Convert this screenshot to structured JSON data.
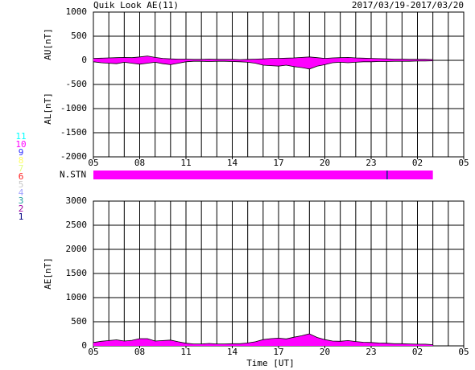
{
  "chart_data": [
    {
      "type": "area",
      "title": "Quik Look AE(11)",
      "subtitle": "2017/03/19-2017/03/20",
      "x": [
        0,
        0.5,
        1,
        1.5,
        2,
        2.5,
        3,
        3.5,
        4,
        4.5,
        5,
        5.5,
        6,
        6.5,
        7,
        7.5,
        8,
        8.5,
        9,
        9.5,
        10,
        10.5,
        11,
        11.5,
        12,
        12.5,
        13,
        13.5,
        14,
        14.5,
        15,
        15.5,
        16,
        16.5,
        17,
        17.5,
        18,
        18.5,
        19,
        19.5,
        20,
        20.5,
        21,
        21.5,
        22
      ],
      "series": [
        {
          "name": "AU[nT]",
          "color": "#ff00ff",
          "values": [
            40,
            45,
            50,
            55,
            60,
            55,
            70,
            90,
            60,
            40,
            30,
            25,
            25,
            20,
            20,
            25,
            20,
            20,
            20,
            15,
            20,
            25,
            30,
            40,
            40,
            45,
            50,
            60,
            70,
            55,
            40,
            50,
            55,
            60,
            50,
            45,
            40,
            35,
            30,
            25,
            25,
            20,
            20,
            20,
            15
          ]
        },
        {
          "name": "AL[nT]",
          "color": "#ff00ff",
          "values": [
            -30,
            -50,
            -60,
            -70,
            -40,
            -60,
            -80,
            -60,
            -40,
            -70,
            -90,
            -60,
            -30,
            -20,
            -20,
            -25,
            -20,
            -20,
            -25,
            -30,
            -40,
            -60,
            -100,
            -110,
            -120,
            -100,
            -130,
            -150,
            -180,
            -120,
            -90,
            -50,
            -40,
            -50,
            -40,
            -30,
            -30,
            -25,
            -25,
            -20,
            -20,
            -20,
            -15,
            -15,
            -10
          ]
        }
      ],
      "xlim": [
        0,
        24
      ],
      "xticks": [
        {
          "value": 0,
          "label": "05"
        },
        {
          "value": 3,
          "label": "08"
        },
        {
          "value": 6,
          "label": "11"
        },
        {
          "value": 9,
          "label": "14"
        },
        {
          "value": 12,
          "label": "17"
        },
        {
          "value": 15,
          "label": "20"
        },
        {
          "value": 18,
          "label": "23"
        },
        {
          "value": 21,
          "label": "02"
        },
        {
          "value": 24,
          "label": "05"
        }
      ],
      "ylim": [
        -2000,
        1000
      ],
      "yticks": [
        1000,
        500,
        0,
        -500,
        -1000,
        -1500,
        -2000
      ],
      "grid": true
    },
    {
      "type": "stations",
      "label": "N.STN",
      "levels": [
        11,
        10,
        9,
        8,
        7,
        6,
        5,
        4,
        3,
        2,
        1
      ],
      "colors": [
        "#00ffff",
        "#ff00ff",
        "#3030ff",
        "#ffff60",
        "#e0ff80",
        "#ff2020",
        "#c8c8c8",
        "#a0a0ff",
        "#20a0a0",
        "#a000a0",
        "#000080"
      ],
      "x_start": [
        0,
        19,
        19.08
      ],
      "x_end": [
        19,
        19.08,
        22
      ],
      "values": [
        10,
        1,
        10
      ],
      "xlim": [
        0,
        24
      ]
    },
    {
      "type": "area",
      "xlabel": "Time [UT]",
      "x": [
        0,
        0.5,
        1,
        1.5,
        2,
        2.5,
        3,
        3.5,
        4,
        4.5,
        5,
        5.5,
        6,
        6.5,
        7,
        7.5,
        8,
        8.5,
        9,
        9.5,
        10,
        10.5,
        11,
        11.5,
        12,
        12.5,
        13,
        13.5,
        14,
        14.5,
        15,
        15.5,
        16,
        16.5,
        17,
        17.5,
        18,
        18.5,
        19,
        19.5,
        20,
        20.5,
        21,
        21.5,
        22
      ],
      "series": [
        {
          "name": "AE[nT]",
          "color": "#ff00ff",
          "values": [
            70,
            95,
            110,
            125,
            100,
            115,
            150,
            150,
            100,
            110,
            120,
            85,
            55,
            40,
            40,
            50,
            40,
            40,
            45,
            45,
            60,
            85,
            130,
            150,
            160,
            145,
            180,
            210,
            250,
            175,
            130,
            100,
            95,
            110,
            90,
            75,
            70,
            60,
            55,
            45,
            45,
            40,
            35,
            35,
            25
          ]
        }
      ],
      "xlim": [
        0,
        24
      ],
      "xticks": [
        {
          "value": 0,
          "label": "05"
        },
        {
          "value": 3,
          "label": "08"
        },
        {
          "value": 6,
          "label": "11"
        },
        {
          "value": 9,
          "label": "14"
        },
        {
          "value": 12,
          "label": "17"
        },
        {
          "value": 15,
          "label": "20"
        },
        {
          "value": 18,
          "label": "23"
        },
        {
          "value": 21,
          "label": "02"
        },
        {
          "value": 24,
          "label": "05"
        }
      ],
      "ylim": [
        0,
        3000
      ],
      "yticks": [
        3000,
        2500,
        2000,
        1500,
        1000,
        500,
        0
      ],
      "grid": true
    }
  ]
}
